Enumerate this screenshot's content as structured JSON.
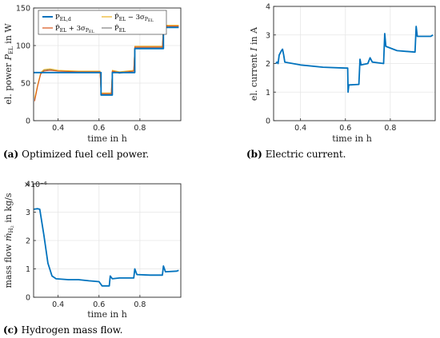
{
  "chart_data": [
    {
      "type": "line",
      "id": "power",
      "caption_tag": "(a)",
      "caption_text": "Optimized fuel cell power.",
      "xlabel": "time in h",
      "ylabel": "el. power P_EL in W",
      "xlim": [
        0.28,
        1.0
      ],
      "ylim": [
        0,
        150
      ],
      "xticks": [
        0.4,
        0.6,
        0.8
      ],
      "yticks": [
        0,
        50,
        100,
        150
      ],
      "grid": true,
      "legend_position": "top",
      "series": [
        {
          "name": "P_EL,d",
          "color": "#0072BD",
          "points": [
            [
              0.28,
              64
            ],
            [
              0.5,
              64
            ],
            [
              0.61,
              64
            ],
            [
              0.61,
              34
            ],
            [
              0.665,
              34
            ],
            [
              0.665,
              64
            ],
            [
              0.775,
              64
            ],
            [
              0.775,
              96
            ],
            [
              0.915,
              96
            ],
            [
              0.915,
              124
            ],
            [
              0.99,
              124
            ]
          ]
        },
        {
          "name": "P̂_EL + 3σ_PEL",
          "color": "#D95319",
          "points": [
            [
              0.285,
              26
            ],
            [
              0.3,
              46
            ],
            [
              0.315,
              62
            ],
            [
              0.33,
              66
            ],
            [
              0.36,
              67
            ],
            [
              0.4,
              66
            ],
            [
              0.5,
              65
            ],
            [
              0.605,
              65
            ],
            [
              0.61,
              36
            ],
            [
              0.66,
              36
            ],
            [
              0.665,
              66
            ],
            [
              0.7,
              64
            ],
            [
              0.77,
              66
            ],
            [
              0.775,
              98
            ],
            [
              0.91,
              98
            ],
            [
              0.915,
              126
            ],
            [
              0.99,
              126
            ]
          ]
        },
        {
          "name": "P̂_EL − 3σ_PEL",
          "color": "#EDB120",
          "points": [
            [
              0.285,
              30
            ],
            [
              0.3,
              48
            ],
            [
              0.315,
              64
            ],
            [
              0.33,
              68
            ],
            [
              0.36,
              69
            ],
            [
              0.4,
              67
            ],
            [
              0.5,
              66
            ],
            [
              0.605,
              66
            ],
            [
              0.61,
              37
            ],
            [
              0.66,
              37
            ],
            [
              0.665,
              67
            ],
            [
              0.7,
              65
            ],
            [
              0.77,
              67
            ],
            [
              0.775,
              99
            ],
            [
              0.91,
              99
            ],
            [
              0.915,
              127
            ],
            [
              0.99,
              127
            ]
          ]
        },
        {
          "name": "P̂_EL",
          "color": "#808080",
          "points": [
            [
              0.285,
              28
            ],
            [
              0.3,
              47
            ],
            [
              0.315,
              63
            ],
            [
              0.33,
              67
            ],
            [
              0.36,
              68
            ],
            [
              0.4,
              66
            ],
            [
              0.5,
              65
            ],
            [
              0.605,
              65
            ],
            [
              0.61,
              35
            ],
            [
              0.66,
              35
            ],
            [
              0.665,
              66
            ],
            [
              0.7,
              63
            ],
            [
              0.77,
              66
            ],
            [
              0.775,
              97
            ],
            [
              0.91,
              97
            ],
            [
              0.915,
              126
            ],
            [
              0.99,
              125
            ]
          ]
        }
      ]
    },
    {
      "type": "line",
      "id": "current",
      "caption_tag": "(b)",
      "caption_text": "Electric current.",
      "xlabel": "time in h",
      "ylabel": "el. current I in A",
      "xlim": [
        0.28,
        1.0
      ],
      "ylim": [
        0,
        4
      ],
      "xticks": [
        0.4,
        0.6,
        0.8
      ],
      "yticks": [
        0,
        1,
        2,
        3,
        4
      ],
      "grid": true,
      "series": [
        {
          "name": "",
          "color": "#0072BD",
          "points": [
            [
              0.29,
              2.0
            ],
            [
              0.295,
              2.05
            ],
            [
              0.3,
              2.0
            ],
            [
              0.305,
              2.3
            ],
            [
              0.315,
              2.45
            ],
            [
              0.32,
              2.5
            ],
            [
              0.325,
              2.3
            ],
            [
              0.33,
              2.05
            ],
            [
              0.4,
              1.95
            ],
            [
              0.5,
              1.87
            ],
            [
              0.6,
              1.84
            ],
            [
              0.61,
              1.84
            ],
            [
              0.612,
              1.0
            ],
            [
              0.615,
              1.25
            ],
            [
              0.66,
              1.27
            ],
            [
              0.665,
              2.15
            ],
            [
              0.67,
              1.95
            ],
            [
              0.7,
              2.0
            ],
            [
              0.71,
              2.2
            ],
            [
              0.72,
              2.05
            ],
            [
              0.77,
              2.0
            ],
            [
              0.775,
              3.05
            ],
            [
              0.78,
              2.6
            ],
            [
              0.83,
              2.45
            ],
            [
              0.91,
              2.4
            ],
            [
              0.915,
              3.3
            ],
            [
              0.92,
              2.95
            ],
            [
              0.98,
              2.95
            ],
            [
              0.99,
              3.0
            ]
          ]
        }
      ]
    },
    {
      "type": "line",
      "id": "massflow",
      "caption_tag": "(c)",
      "caption_text": "Hydrogen mass flow.",
      "xlabel": "time in h",
      "ylabel": "mass flow ṁ_H2 in kg/s",
      "exponent": "×10⁻⁶",
      "xlim": [
        0.28,
        1.0
      ],
      "ylim": [
        0,
        4
      ],
      "xticks": [
        0.4,
        0.6,
        0.8
      ],
      "yticks": [
        0,
        1,
        2,
        3,
        4
      ],
      "grid": true,
      "series": [
        {
          "name": "",
          "color": "#0072BD",
          "points": [
            [
              0.28,
              3.1
            ],
            [
              0.3,
              3.12
            ],
            [
              0.31,
              3.1
            ],
            [
              0.33,
              2.2
            ],
            [
              0.35,
              1.2
            ],
            [
              0.37,
              0.75
            ],
            [
              0.39,
              0.65
            ],
            [
              0.45,
              0.62
            ],
            [
              0.5,
              0.62
            ],
            [
              0.55,
              0.58
            ],
            [
              0.6,
              0.55
            ],
            [
              0.615,
              0.4
            ],
            [
              0.65,
              0.4
            ],
            [
              0.655,
              0.75
            ],
            [
              0.665,
              0.65
            ],
            [
              0.7,
              0.68
            ],
            [
              0.77,
              0.68
            ],
            [
              0.775,
              1.0
            ],
            [
              0.785,
              0.8
            ],
            [
              0.85,
              0.78
            ],
            [
              0.91,
              0.78
            ],
            [
              0.915,
              1.1
            ],
            [
              0.925,
              0.9
            ],
            [
              0.98,
              0.92
            ],
            [
              0.99,
              0.95
            ]
          ]
        }
      ]
    }
  ]
}
